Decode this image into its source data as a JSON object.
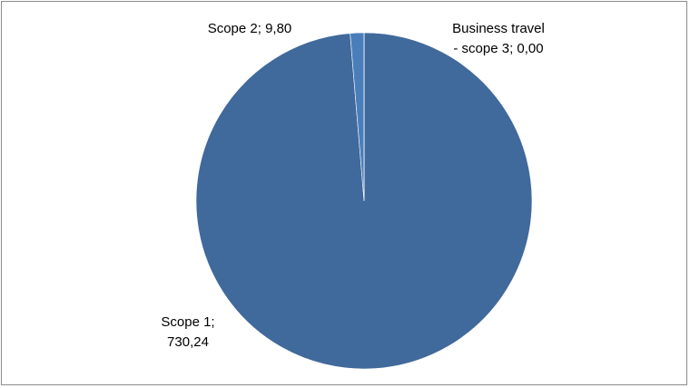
{
  "chart_data": {
    "type": "pie",
    "title": "",
    "slices": [
      {
        "label": "Scope 1",
        "value": 730.24,
        "display": "730,24",
        "color": "#40699c"
      },
      {
        "label": "Scope 2",
        "value": 9.8,
        "display": "9,80",
        "color": "#4a7ebb"
      },
      {
        "label": "Business travel - scope 3",
        "value": 0.0,
        "display": "0,00",
        "color": "#4a7ebb"
      }
    ],
    "data_labels": [
      {
        "lines": [
          "Scope 1;",
          "730,24"
        ]
      },
      {
        "lines": [
          "Scope 2; 9,80"
        ]
      },
      {
        "lines": [
          "Business travel",
          "- scope 3; 0,00"
        ]
      }
    ],
    "legend": "none"
  }
}
